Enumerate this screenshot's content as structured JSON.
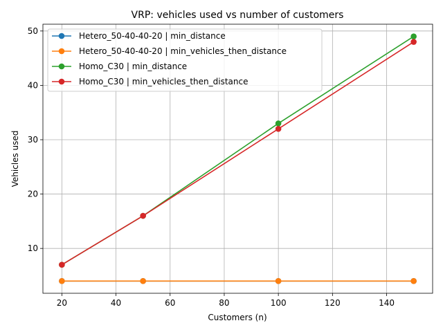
{
  "chart_data": {
    "type": "line",
    "title": "VRP: vehicles used vs number of customers",
    "xlabel": "Customers (n)",
    "ylabel": "Vehicles used",
    "xlim": [
      13,
      157
    ],
    "ylim": [
      1.75,
      51.25
    ],
    "xticks": [
      20,
      40,
      60,
      80,
      100,
      120,
      140
    ],
    "yticks": [
      10,
      20,
      30,
      40,
      50
    ],
    "grid": true,
    "legend_position": "top-left",
    "x": [
      20,
      50,
      100,
      150
    ],
    "series": [
      {
        "name": "Hetero_50-40-40-20 | min_distance",
        "values": [
          4,
          4,
          4,
          4
        ],
        "color": "#1f77b4"
      },
      {
        "name": "Hetero_50-40-40-20 | min_vehicles_then_distance",
        "values": [
          4,
          4,
          4,
          4
        ],
        "color": "#ff7f0e"
      },
      {
        "name": "Homo_C30 | min_distance",
        "values": [
          7,
          16,
          33,
          49
        ],
        "color": "#2ca02c"
      },
      {
        "name": "Homo_C30 | min_vehicles_then_distance",
        "values": [
          7,
          16,
          32,
          48
        ],
        "color": "#d62728"
      }
    ]
  }
}
